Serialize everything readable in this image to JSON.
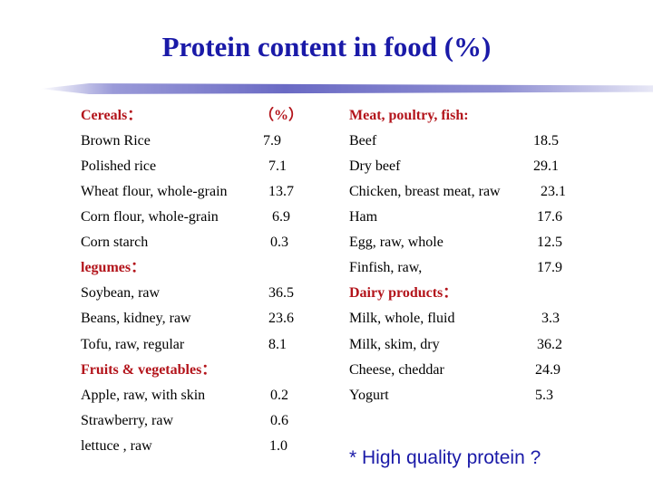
{
  "title": "Protein content in food (%)",
  "left": {
    "cereals_header": "Cereals：",
    "percent_header": "（%）",
    "cereals": [
      {
        "food": "Brown Rice",
        "value": "7.9"
      },
      {
        "food": "Polished rice",
        "value": "7.1"
      },
      {
        "food": "Wheat flour, whole-grain",
        "value": "13.7"
      },
      {
        "food": "Corn flour, whole-grain",
        "value": "6.9"
      },
      {
        "food": "Corn starch",
        "value": "0.3"
      }
    ],
    "legumes_header": "legumes：",
    "legumes": [
      {
        "food": "Soybean, raw",
        "value": "36.5"
      },
      {
        "food": "Beans, kidney, raw",
        "value": "23.6"
      },
      {
        "food": "Tofu, raw, regular",
        "value": "8.1"
      }
    ],
    "fruits_header": "Fruits & vegetables：",
    "fruits": [
      {
        "food": "Apple, raw, with skin",
        "value": "0.2"
      },
      {
        "food": "Strawberry, raw",
        "value": "0.6"
      },
      {
        "food": "lettuce , raw",
        "value": "1.0"
      }
    ]
  },
  "right": {
    "meat_header": "Meat, poultry, fish:",
    "meat": [
      {
        "food": "Beef",
        "value": "18.5"
      },
      {
        "food": "Dry beef",
        "value": "29.1"
      },
      {
        "food": "Chicken, breast meat, raw",
        "value": "23.1"
      },
      {
        "food": "Ham",
        "value": "17.6"
      },
      {
        "food": "Egg, raw, whole",
        "value": "12.5"
      },
      {
        "food": "Finfish, raw,",
        "value": "17.9"
      }
    ],
    "dairy_header": "Dairy products：",
    "dairy": [
      {
        "food": "Milk, whole, fluid",
        "value": "3.3"
      },
      {
        "food": "Milk, skim, dry",
        "value": "36.2"
      },
      {
        "food": "Cheese, cheddar",
        "value": "24.9"
      },
      {
        "food": "Yogurt",
        "value": "5.3"
      }
    ]
  },
  "note": "* High quality protein ?"
}
